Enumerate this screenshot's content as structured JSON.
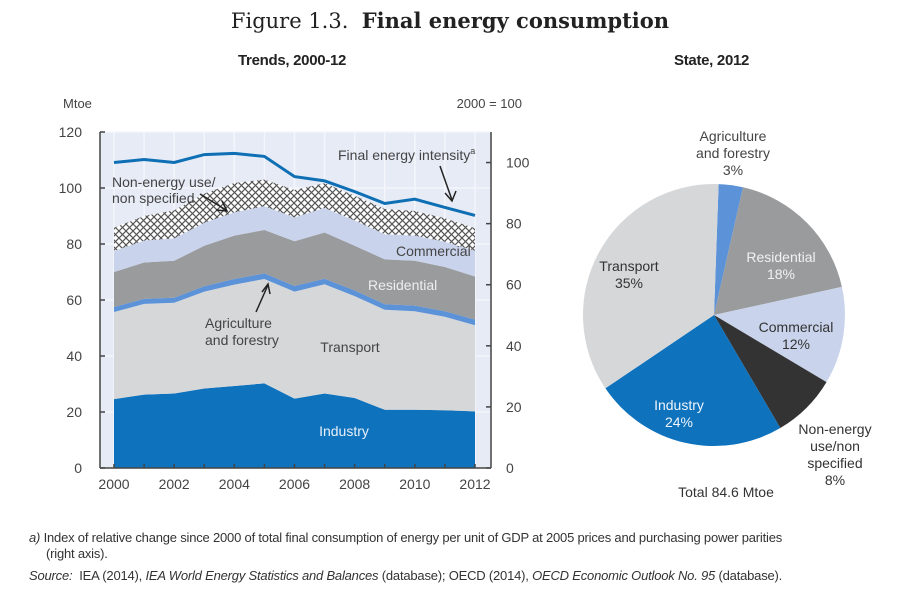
{
  "figure": {
    "number": "Figure 1.3.",
    "title": "Final energy consumption"
  },
  "chart_data": [
    {
      "type": "area",
      "title": "Trends, 2000-12",
      "ylabel_left": "Mtoe",
      "ylabel_right": "2000 = 100",
      "x": [
        2000,
        2001,
        2002,
        2003,
        2004,
        2005,
        2006,
        2007,
        2008,
        2009,
        2010,
        2011,
        2012
      ],
      "xticks": [
        "2000",
        "2002",
        "2004",
        "2006",
        "2008",
        "2010",
        "2012"
      ],
      "ylim_left": [
        0,
        120
      ],
      "yticks_left": [
        "0",
        "20",
        "40",
        "60",
        "80",
        "100",
        "120"
      ],
      "ylim_right": [
        0,
        110
      ],
      "yticks_right": [
        "0",
        "20",
        "40",
        "60",
        "80",
        "100"
      ],
      "grid": true,
      "stacked": true,
      "series": [
        {
          "name": "Industry",
          "color": "#0f72bd",
          "values": [
            24.6,
            26.2,
            26.6,
            28.4,
            29.3,
            30.2,
            24.8,
            26.6,
            25.0,
            20.8,
            20.8,
            20.6,
            20.2
          ]
        },
        {
          "name": "Transport",
          "color": "#d6d7d9",
          "values": [
            31.1,
            32.4,
            32.4,
            34.6,
            36.2,
            37.3,
            38.2,
            39.0,
            36.4,
            35.7,
            35.2,
            33.4,
            30.8
          ]
        },
        {
          "name": "Agriculture and forestry",
          "color": "#5b92d8",
          "values": [
            1.8,
            1.8,
            1.8,
            1.9,
            2.0,
            2.0,
            2.0,
            2.0,
            2.0,
            2.0,
            2.0,
            2.0,
            2.0
          ]
        },
        {
          "name": "Residential",
          "color": "#9a9b9d",
          "values": [
            12.5,
            13.0,
            13.2,
            14.5,
            15.5,
            15.5,
            16.0,
            16.5,
            16.0,
            16.0,
            16.0,
            15.8,
            15.4
          ]
        },
        {
          "name": "Commercial",
          "color": "#c9d4ec",
          "values": [
            7.5,
            7.8,
            8.0,
            8.2,
            8.3,
            8.5,
            8.5,
            8.8,
            9.0,
            9.0,
            9.0,
            9.0,
            9.2
          ]
        },
        {
          "name": "Non-energy use/ non specified",
          "color": "#ffffff",
          "pattern": "crosshatch",
          "values": [
            8.3,
            8.8,
            10.0,
            10.4,
            10.5,
            9.5,
            9.8,
            8.8,
            8.8,
            9.0,
            8.8,
            8.4,
            8.0
          ]
        }
      ],
      "line_series": {
        "name": "Final energy intensity",
        "axis": "right",
        "color": "#0e6fb4",
        "values": [
          100.0,
          101.0,
          100.0,
          102.6,
          103.0,
          102.0,
          95.4,
          94.0,
          90.5,
          86.6,
          88.0,
          85.3,
          82.7
        ]
      },
      "annotations": [
        {
          "text": "Final energy intensity",
          "superscript": "a"
        },
        {
          "text": "Non-energy use/"
        },
        {
          "text": "non specified"
        },
        {
          "text": "Commercial"
        },
        {
          "text": "Residential"
        },
        {
          "text": "Agriculture"
        },
        {
          "text": "and forestry"
        },
        {
          "text": "Transport"
        },
        {
          "text": "Industry"
        }
      ]
    },
    {
      "type": "pie",
      "title": "State, 2012",
      "total_label": "Total  84.6 Mtoe",
      "slices": [
        {
          "name": "Agriculture and forestry",
          "label_lines": [
            "Agriculture",
            "and forestry",
            "3%"
          ],
          "value": 3,
          "color": "#5b92d8"
        },
        {
          "name": "Residential",
          "label_lines": [
            "Residential",
            "18%"
          ],
          "value": 18,
          "color": "#9a9b9d"
        },
        {
          "name": "Commercial",
          "label_lines": [
            "Commercial",
            "12%"
          ],
          "value": 12,
          "color": "#c9d4ec"
        },
        {
          "name": "Non-energy use/non specified",
          "label_lines": [
            "Non-energy",
            "use/non",
            "specified",
            "8%"
          ],
          "value": 8,
          "color": "#333333"
        },
        {
          "name": "Industry",
          "label_lines": [
            "Industry",
            "24%"
          ],
          "value": 24,
          "color": "#0f72bd"
        },
        {
          "name": "Transport",
          "label_lines": [
            "Transport",
            "35%"
          ],
          "value": 35,
          "color": "#d6d7d9"
        }
      ]
    }
  ],
  "footnote": {
    "marker": "a)",
    "line1": "Index of relative change since 2000 of total final consumption of energy per unit of GDP at 2005 prices and purchasing power parities",
    "line2": "(right axis).",
    "source_label": "Source:",
    "source_parts": [
      {
        "text": "IEA (2014), ",
        "italic": false
      },
      {
        "text": "IEA World Energy Statistics and Balances",
        "italic": true
      },
      {
        "text": " (database); OECD (2014), ",
        "italic": false
      },
      {
        "text": "OECD Economic Outlook No. 95",
        "italic": true
      },
      {
        "text": " (database).",
        "italic": false
      }
    ]
  }
}
